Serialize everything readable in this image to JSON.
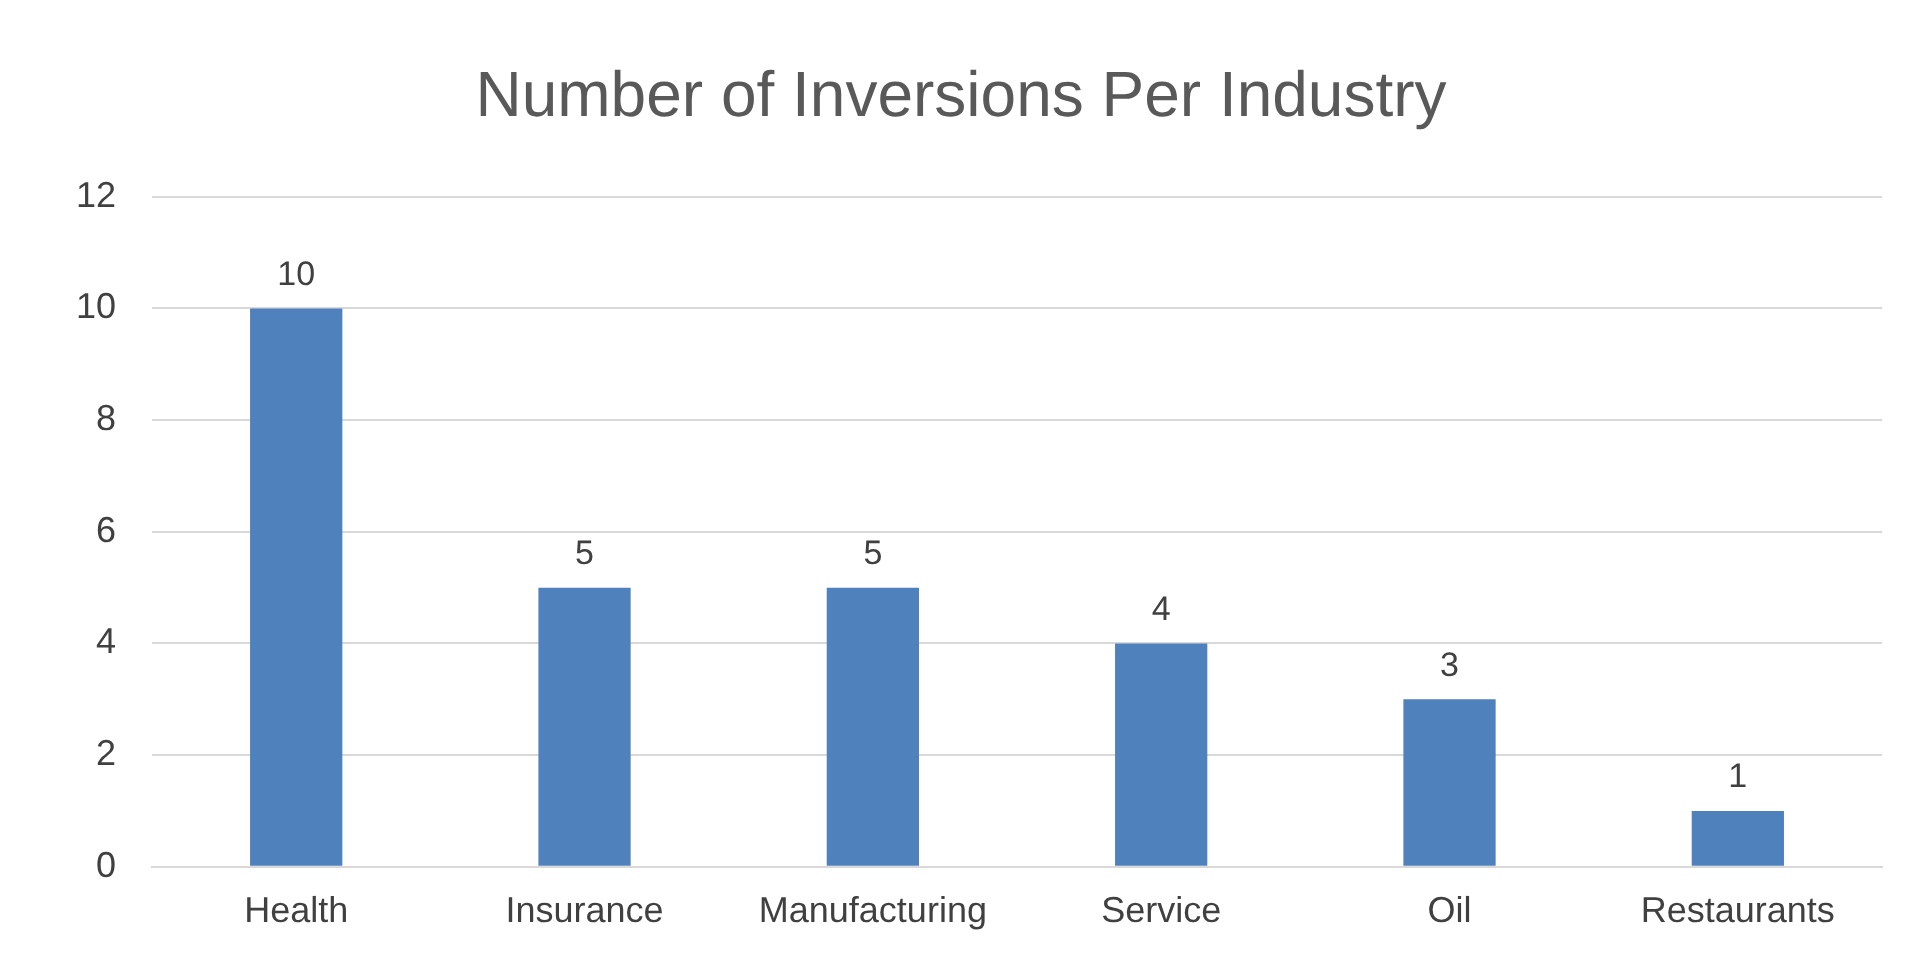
{
  "chart_data": {
    "type": "bar",
    "title": "Number of Inversions Per Industry",
    "categories": [
      "Health",
      "Insurance",
      "Manufacturing",
      "Service",
      "Oil",
      "Restaurants"
    ],
    "values": [
      10,
      5,
      5,
      4,
      3,
      1
    ],
    "color": "#4f81bd",
    "ylim": [
      0,
      12
    ],
    "yticks": [
      0,
      2,
      4,
      6,
      8,
      10,
      12
    ],
    "grid": "y",
    "data_labels": true,
    "legend": false
  }
}
